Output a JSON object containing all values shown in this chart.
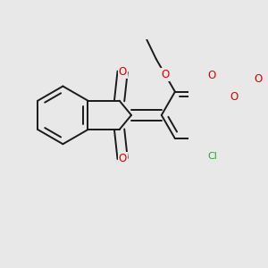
{
  "background_color": "#e8e8e8",
  "bond_color": "#1a1a1a",
  "bond_width": 1.4,
  "dbo": 0.012,
  "atom_colors": {
    "O": "#dd0000",
    "Cl": "#22aa22",
    "C": "#1a1a1a"
  },
  "font_size_atom": 8.5,
  "figsize": [
    3.0,
    3.0
  ],
  "dpi": 100
}
